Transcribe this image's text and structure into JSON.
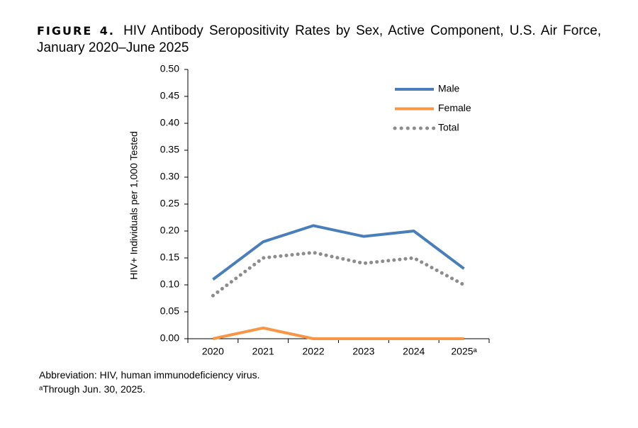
{
  "chart_data": {
    "type": "line",
    "figure_label": "FIGURE 4.",
    "title": "HIV Antibody Seropositivity Rates by Sex, Active Component, U.S. Air Force, January 2020–June 2025",
    "y_label": "HIV+ Individuals per 1,000 Tested",
    "categories": [
      "2020",
      "2021",
      "2022",
      "2023",
      "2024",
      "2025ᵃ"
    ],
    "series": [
      {
        "name": "Male",
        "color": "#4a7ebb",
        "style": "solid",
        "values": [
          0.11,
          0.18,
          0.21,
          0.19,
          0.2,
          0.13
        ]
      },
      {
        "name": "Female",
        "color": "#f79646",
        "style": "solid",
        "values": [
          0,
          0.02,
          0,
          0,
          0,
          0
        ]
      },
      {
        "name": "Total",
        "color": "#8c8c8c",
        "style": "dotted",
        "values": [
          0.08,
          0.15,
          0.16,
          0.14,
          0.15,
          0.1
        ]
      }
    ],
    "ylim": [
      0,
      0.5
    ],
    "yticks": [
      {
        "value": 0,
        "label": "0.00"
      },
      {
        "value": 0.05,
        "label": "0.05"
      },
      {
        "value": 0.1,
        "label": "0.10"
      },
      {
        "value": 0.15,
        "label": "0.15"
      },
      {
        "value": 0.2,
        "label": "0.20"
      },
      {
        "value": 0.25,
        "label": "0.25"
      },
      {
        "value": 0.3,
        "label": "0.30"
      },
      {
        "value": 0.35,
        "label": "0.35"
      },
      {
        "value": 0.4,
        "label": "0.40"
      },
      {
        "value": 0.45,
        "label": "0.45"
      },
      {
        "value": 0.5,
        "label": "0.50"
      }
    ],
    "grid": false,
    "legend": "upper right",
    "notes": [
      "Abbreviation: HIV, human immunodeficiency virus.",
      "ᵃThrough Jun. 30,  2025."
    ]
  }
}
